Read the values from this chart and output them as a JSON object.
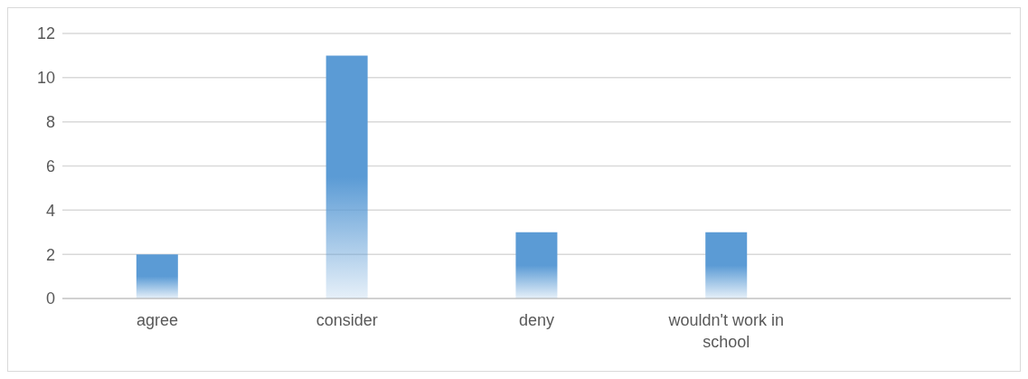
{
  "chart_data": {
    "type": "bar",
    "categories": [
      "agree",
      "consider",
      "deny",
      "wouldn't work in school",
      null
    ],
    "values": [
      2,
      11,
      3,
      3,
      null
    ],
    "color": "#5b9bd5",
    "ylim": [
      0,
      12
    ],
    "yticks": [
      0,
      2,
      4,
      6,
      8,
      10,
      12
    ],
    "grid": "y"
  }
}
